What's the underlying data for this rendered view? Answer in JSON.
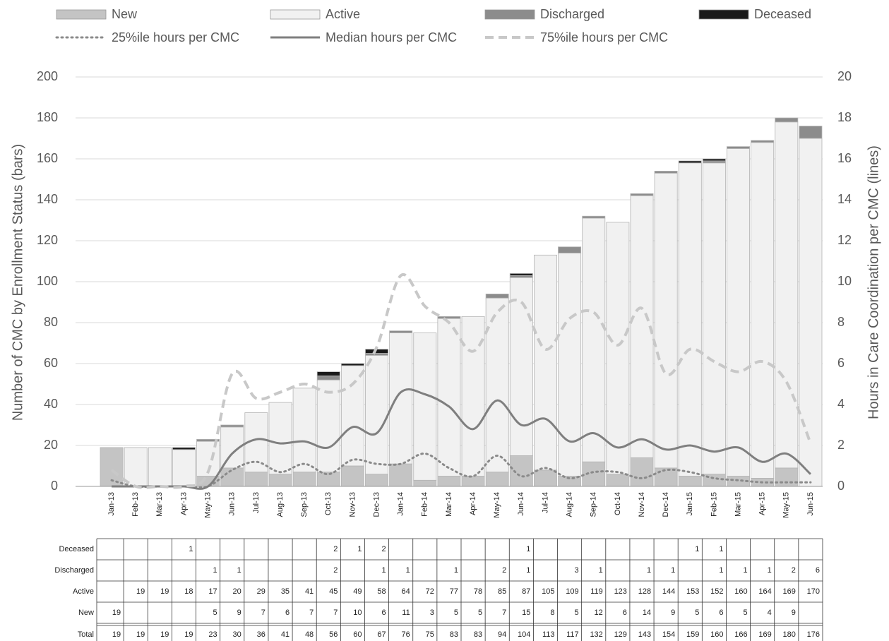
{
  "chart_data": {
    "type": "bar",
    "stacked": true,
    "categories": [
      "Jan-13",
      "Feb-13",
      "Mar-13",
      "Apr-13",
      "May-13",
      "Jun-13",
      "Jul-13",
      "Aug-13",
      "Sep-13",
      "Oct-13",
      "Nov-13",
      "Dec-13",
      "Jan-14",
      "Feb-14",
      "Mar-14",
      "Apr-14",
      "May-14",
      "Jun-14",
      "Jul-14",
      "Aug-14",
      "Sep-14",
      "Oct-14",
      "Nov-14",
      "Dec-14",
      "Jan-15",
      "Feb-15",
      "Mar-15",
      "Apr-15",
      "May-15",
      "Jun-15"
    ],
    "ylabel": "Number of CMC by Enrollment Status (bars)",
    "y2label": "Hours in Care Coordination per CMC (lines)",
    "ylim": [
      0,
      200
    ],
    "yticks": [
      0,
      20,
      40,
      60,
      80,
      100,
      120,
      140,
      160,
      180,
      200
    ],
    "y2lim": [
      0,
      20
    ],
    "y2ticks": [
      0,
      2,
      4,
      6,
      8,
      10,
      12,
      14,
      16,
      18,
      20
    ],
    "series": [
      {
        "name": "New",
        "color": "#c4c4c4",
        "values": [
          19,
          null,
          null,
          null,
          5,
          9,
          7,
          6,
          7,
          7,
          10,
          6,
          11,
          3,
          5,
          5,
          7,
          15,
          8,
          5,
          12,
          6,
          14,
          9,
          5,
          6,
          5,
          4,
          9,
          null
        ]
      },
      {
        "name": "Active",
        "color": "#f1f1f1",
        "values": [
          null,
          19,
          19,
          18,
          17,
          20,
          29,
          35,
          41,
          45,
          49,
          58,
          64,
          72,
          77,
          78,
          85,
          87,
          105,
          109,
          119,
          123,
          128,
          144,
          153,
          152,
          160,
          164,
          169,
          170
        ]
      },
      {
        "name": "Discharged",
        "color": "#8c8c8c",
        "values": [
          null,
          null,
          null,
          null,
          1,
          1,
          null,
          null,
          null,
          2,
          null,
          1,
          1,
          null,
          1,
          null,
          2,
          1,
          null,
          3,
          1,
          null,
          1,
          1,
          null,
          1,
          1,
          1,
          2,
          6
        ]
      },
      {
        "name": "Deceased",
        "color": "#1a1a1a",
        "values": [
          null,
          null,
          null,
          1,
          null,
          null,
          null,
          null,
          null,
          2,
          1,
          2,
          null,
          null,
          null,
          null,
          null,
          1,
          null,
          null,
          null,
          null,
          null,
          null,
          1,
          1,
          null,
          null,
          null,
          null
        ]
      },
      {
        "name": "25%ile hours per CMC",
        "type": "line",
        "axis": "y2",
        "dash": "dotted",
        "color": "#8a8a8a",
        "values": [
          0.3,
          0,
          0,
          0,
          0,
          0.8,
          1.2,
          0.7,
          1.1,
          0.6,
          1.3,
          1.1,
          1.1,
          1.6,
          0.9,
          0.5,
          1.5,
          0.5,
          0.9,
          0.4,
          0.7,
          0.7,
          0.4,
          0.8,
          0.7,
          0.4,
          0.3,
          0.2,
          0.2,
          0.2
        ]
      },
      {
        "name": "Median hours per CMC",
        "type": "line",
        "axis": "y2",
        "dash": "solid",
        "color": "#7f7f7f",
        "values": [
          0,
          0,
          0,
          0,
          0,
          1.6,
          2.3,
          2.1,
          2.2,
          1.9,
          2.9,
          2.6,
          4.6,
          4.5,
          3.9,
          2.8,
          4.2,
          3.0,
          3.3,
          2.2,
          2.6,
          1.9,
          2.3,
          1.8,
          2.0,
          1.7,
          1.9,
          1.2,
          1.6,
          0.6
        ]
      },
      {
        "name": "75%ile hours per CMC",
        "type": "line",
        "axis": "y2",
        "dash": "dashed",
        "color": "#c8c8c8",
        "values": [
          0.8,
          0,
          0,
          0,
          0.7,
          5.5,
          4.3,
          4.6,
          5.0,
          4.6,
          5.0,
          6.8,
          10.3,
          8.8,
          8.0,
          6.6,
          8.5,
          9.0,
          6.7,
          8.2,
          8.5,
          6.9,
          8.7,
          5.5,
          6.7,
          6.1,
          5.6,
          6.1,
          5.1,
          2.1
        ]
      }
    ],
    "total_label": "Total",
    "totals": [
      19,
      19,
      19,
      19,
      23,
      30,
      36,
      41,
      48,
      56,
      60,
      67,
      76,
      75,
      83,
      83,
      94,
      104,
      113,
      117,
      132,
      129,
      143,
      154,
      159,
      160,
      166,
      169,
      180,
      176
    ]
  }
}
